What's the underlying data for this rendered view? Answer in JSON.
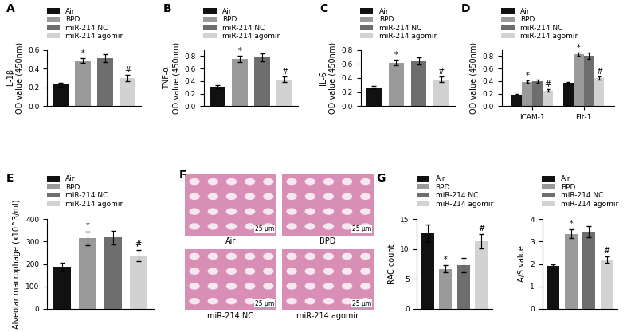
{
  "chart_data": [
    {
      "type": "bar",
      "panel": "A",
      "ylabel": "IL-1β\nOD value (450nm)",
      "categories": [
        "Air",
        "BPD",
        "miR-214 NC",
        "miR-214 agomir"
      ],
      "values": [
        0.23,
        0.49,
        0.51,
        0.3
      ],
      "errors": [
        0.02,
        0.025,
        0.04,
        0.03
      ],
      "marks": [
        null,
        "*",
        null,
        "#"
      ],
      "colors": [
        "#111111",
        "#9a9a9a",
        "#6e6e6e",
        "#d2d2d2"
      ],
      "ylim": [
        0.0,
        0.6
      ],
      "yticks": [
        0.0,
        0.2,
        0.4,
        0.6
      ],
      "legend": "upper left",
      "tick_labels": "y"
    },
    {
      "type": "bar",
      "panel": "B",
      "ylabel": "TNF-α\nOD value (450nm)",
      "categories": [
        "Air",
        "BPD",
        "miR-214 NC",
        "miR-214 agomir"
      ],
      "values": [
        0.31,
        0.75,
        0.78,
        0.43
      ],
      "errors": [
        0.02,
        0.05,
        0.06,
        0.04
      ],
      "marks": [
        null,
        "*",
        null,
        "#"
      ],
      "colors": [
        "#111111",
        "#9a9a9a",
        "#6e6e6e",
        "#d2d2d2"
      ],
      "ylim": [
        0.0,
        0.9
      ],
      "yticks": [
        0.0,
        0.2,
        0.4,
        0.6,
        0.8
      ],
      "legend": "upper left",
      "tick_labels": "y"
    },
    {
      "type": "bar",
      "panel": "C",
      "ylabel": "IL-6\nOD value (450nm)",
      "categories": [
        "Air",
        "BPD",
        "miR-214 NC",
        "miR-214 agomir"
      ],
      "values": [
        0.27,
        0.62,
        0.64,
        0.38
      ],
      "errors": [
        0.02,
        0.04,
        0.05,
        0.04
      ],
      "marks": [
        null,
        "*",
        null,
        "#"
      ],
      "colors": [
        "#111111",
        "#9a9a9a",
        "#6e6e6e",
        "#d2d2d2"
      ],
      "ylim": [
        0.0,
        0.8
      ],
      "yticks": [
        0.0,
        0.2,
        0.4,
        0.6,
        0.8
      ],
      "legend": "upper left",
      "tick_labels": "y"
    },
    {
      "type": "bar",
      "panel": "D",
      "ylabel": "OD value (450nm)",
      "categories": [
        "ICAM-1",
        "Flt-1"
      ],
      "series": [
        {
          "name": "Air",
          "color": "#111111",
          "values": [
            0.18,
            0.37
          ],
          "errors": [
            0.01,
            0.02
          ],
          "marks": [
            null,
            null
          ]
        },
        {
          "name": "BPD",
          "color": "#9a9a9a",
          "values": [
            0.39,
            0.83
          ],
          "errors": [
            0.02,
            0.02
          ],
          "marks": [
            "*",
            "*"
          ]
        },
        {
          "name": "miR-214 NC",
          "color": "#6e6e6e",
          "values": [
            0.4,
            0.8
          ],
          "errors": [
            0.03,
            0.05
          ],
          "marks": [
            null,
            null
          ]
        },
        {
          "name": "miR-214 agomir",
          "color": "#d2d2d2",
          "values": [
            0.25,
            0.45
          ],
          "errors": [
            0.02,
            0.03
          ],
          "marks": [
            "#",
            "#"
          ]
        }
      ],
      "ylim": [
        0.0,
        0.9
      ],
      "yticks": [
        0.0,
        0.2,
        0.4,
        0.6,
        0.8
      ],
      "legend": "upper left"
    },
    {
      "type": "bar",
      "panel": "E",
      "ylabel": "Alveolar macrophage (x10^3/ml)",
      "categories": [
        "Air",
        "BPD",
        "miR-214 NC",
        "miR-214 agomir"
      ],
      "values": [
        187,
        315,
        318,
        238
      ],
      "errors": [
        20,
        30,
        30,
        25
      ],
      "marks": [
        null,
        "*",
        null,
        "#"
      ],
      "colors": [
        "#111111",
        "#9a9a9a",
        "#6e6e6e",
        "#d2d2d2"
      ],
      "ylim": [
        0,
        400
      ],
      "yticks": [
        0,
        100,
        200,
        300,
        400
      ],
      "legend": "upper left",
      "tick_labels": "y"
    },
    {
      "type": "image",
      "panel": "F",
      "panels": [
        {
          "label": "Air"
        },
        {
          "label": "BPD"
        },
        {
          "label": "miR-214 NC"
        },
        {
          "label": "miR-214 agomir"
        }
      ],
      "scale_bar": "25 μm"
    },
    {
      "type": "bar",
      "panel": "G",
      "ylabel": "RAC count",
      "categories": [
        "Air",
        "BPD",
        "miR-214 NC",
        "miR-214 agomir"
      ],
      "values": [
        12.6,
        6.7,
        7.3,
        11.3
      ],
      "errors": [
        1.5,
        0.6,
        1.2,
        1.2
      ],
      "marks": [
        null,
        "*",
        null,
        "#"
      ],
      "colors": [
        "#111111",
        "#9a9a9a",
        "#6e6e6e",
        "#d2d2d2"
      ],
      "ylim": [
        0,
        15
      ],
      "yticks": [
        0,
        5,
        10,
        15
      ],
      "legend": "upper left",
      "tick_labels": "y"
    },
    {
      "type": "bar",
      "ylabel": "A/S value",
      "categories": [
        "Air",
        "BPD",
        "miR-214 NC",
        "miR-214 agomir"
      ],
      "values": [
        1.9,
        3.35,
        3.45,
        2.2
      ],
      "errors": [
        0.1,
        0.2,
        0.25,
        0.15
      ],
      "marks": [
        null,
        "*",
        null,
        "#"
      ],
      "colors": [
        "#111111",
        "#9a9a9a",
        "#6e6e6e",
        "#d2d2d2"
      ],
      "ylim": [
        0,
        4
      ],
      "yticks": [
        0,
        1,
        2,
        3,
        4
      ],
      "legend": "upper left",
      "tick_labels": "y"
    }
  ]
}
